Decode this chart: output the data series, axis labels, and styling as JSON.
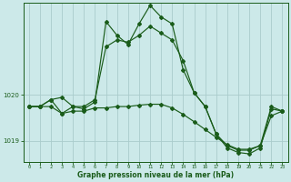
{
  "background_color": "#cce9e9",
  "grid_color": "#aacccc",
  "line_color": "#1a5c1a",
  "xlabel": "Graphe pression niveau de la mer (hPa)",
  "x_min": -0.5,
  "x_max": 23.5,
  "y_min": 1018.55,
  "y_max": 1022.0,
  "yticks": [
    1019,
    1020
  ],
  "series": [
    {
      "x": [
        0,
        1,
        2,
        3,
        4,
        5,
        6,
        7,
        8,
        9,
        10,
        11,
        12,
        13,
        14,
        15,
        16,
        17,
        18,
        19,
        20,
        21,
        22,
        23
      ],
      "y": [
        1019.75,
        1019.75,
        1019.9,
        1019.95,
        1019.75,
        1019.75,
        1019.9,
        1021.05,
        1021.2,
        1021.15,
        1021.3,
        1021.5,
        1021.35,
        1021.2,
        1020.75,
        1020.05,
        1019.75,
        1019.15,
        1018.9,
        1018.8,
        1018.8,
        1018.9,
        1019.75,
        1019.65
      ]
    },
    {
      "x": [
        0,
        1,
        2,
        3,
        4,
        5,
        6,
        7,
        8,
        9,
        10,
        11,
        12,
        13,
        14,
        15,
        16,
        17,
        18,
        19,
        20,
        21,
        22,
        23
      ],
      "y": [
        1019.75,
        1019.75,
        1019.9,
        1019.6,
        1019.75,
        1019.7,
        1019.85,
        1021.6,
        1021.3,
        1021.1,
        1021.55,
        1021.95,
        1021.7,
        1021.55,
        1020.55,
        1020.05,
        1019.75,
        1019.15,
        1018.85,
        1018.75,
        1018.72,
        1018.85,
        1019.7,
        1019.65
      ]
    },
    {
      "x": [
        0,
        1,
        2,
        3,
        4,
        5,
        6,
        7,
        8,
        9,
        10,
        11,
        12,
        13,
        14,
        15,
        16,
        17,
        18,
        19,
        20,
        21,
        22,
        23
      ],
      "y": [
        1019.75,
        1019.75,
        1019.75,
        1019.6,
        1019.65,
        1019.65,
        1019.72,
        1019.72,
        1019.75,
        1019.75,
        1019.78,
        1019.8,
        1019.8,
        1019.72,
        1019.58,
        1019.42,
        1019.25,
        1019.08,
        1018.92,
        1018.82,
        1018.82,
        1018.9,
        1019.55,
        1019.65
      ]
    }
  ]
}
